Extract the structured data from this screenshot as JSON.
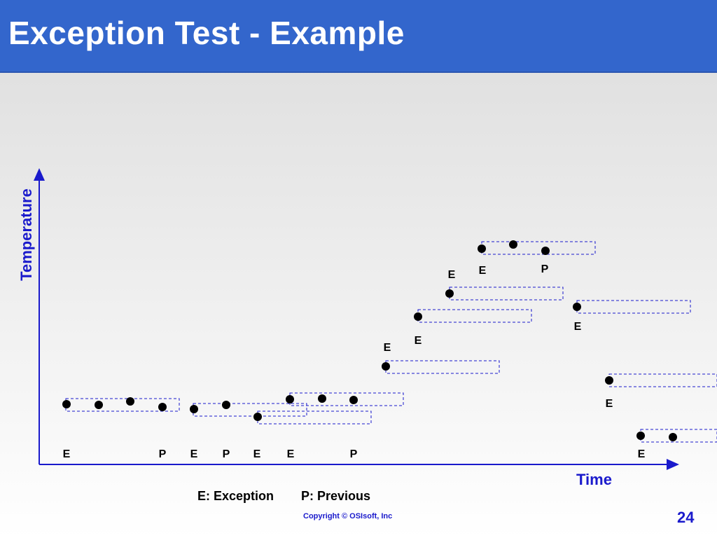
{
  "slide": {
    "title": "Exception Test - Example",
    "page_number": "24",
    "copyright": "Copyright ©  OSIsoft, Inc"
  },
  "diagram": {
    "y_axis_label": "Temperature",
    "x_axis_label": "Time",
    "legend": {
      "exception": "E: Exception",
      "previous": "P: Previous"
    },
    "marker_labels": {
      "exception": "E",
      "previous": "P"
    },
    "colors": {
      "axis": "#1a1acc",
      "box": "#1a1acc",
      "dot": "#000000",
      "title_bar": "#3366cc"
    }
  }
}
